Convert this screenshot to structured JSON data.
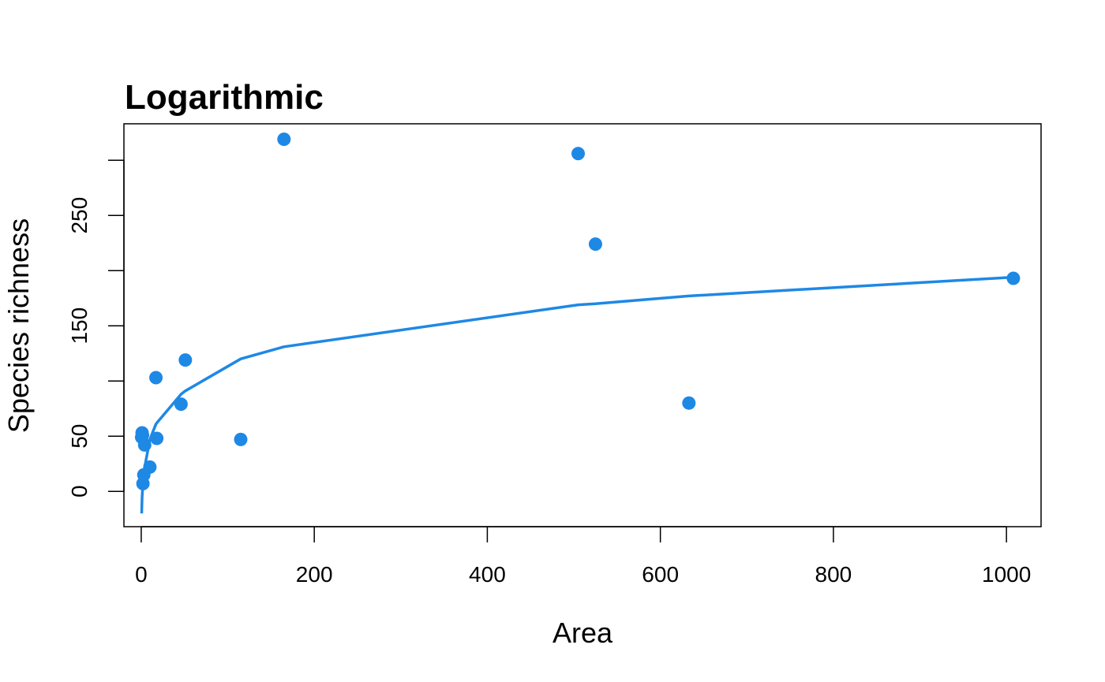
{
  "chart_data": {
    "type": "scatter",
    "title": "Logarithmic",
    "xlabel": "Area",
    "ylabel": "Species richness",
    "xlim": [
      -20,
      1040
    ],
    "ylim": [
      -32,
      333
    ],
    "x_ticks": [
      0,
      200,
      400,
      600,
      800,
      1000
    ],
    "x_tick_labels": [
      "0",
      "200",
      "400",
      "600",
      "800",
      "1000"
    ],
    "y_ticks": [
      0,
      50,
      100,
      150,
      200,
      250,
      300
    ],
    "y_tick_labels": [
      "0",
      "50",
      "",
      "150",
      "",
      "250",
      ""
    ],
    "grid": false,
    "legend": "none",
    "color": "#1e88e5",
    "points": {
      "x": [
        0.5,
        1,
        1.5,
        2,
        3,
        4,
        10,
        17,
        18,
        46,
        51,
        115,
        165,
        505,
        525,
        633,
        1008
      ],
      "y": [
        49,
        53,
        51,
        7,
        15,
        42,
        22,
        103,
        48,
        79,
        119,
        47,
        319,
        306,
        224,
        80,
        193
      ]
    },
    "fit_line": {
      "x": [
        0.5,
        1,
        1.5,
        2,
        3,
        4,
        10,
        17,
        18,
        46,
        51,
        115,
        165,
        505,
        525,
        633,
        1008
      ],
      "y": [
        -20,
        -6,
        2,
        8,
        16,
        22,
        47,
        61,
        62,
        88,
        91,
        120,
        131,
        169,
        170,
        177,
        194
      ]
    }
  }
}
